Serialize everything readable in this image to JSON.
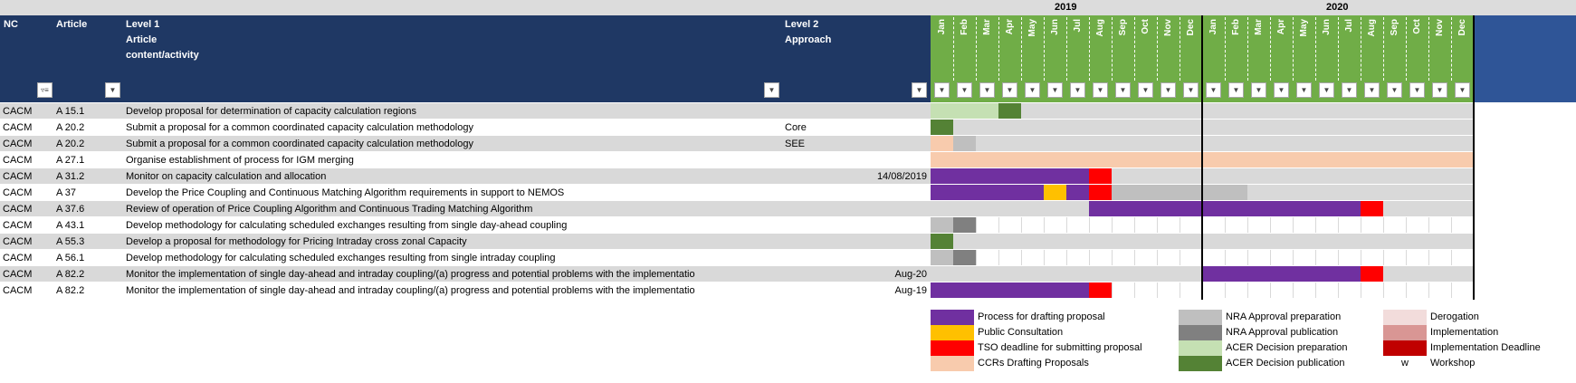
{
  "years": [
    "2019",
    "2020"
  ],
  "months": [
    "Jan",
    "Feb",
    "Mar",
    "Apr",
    "May",
    "Jun",
    "Jul",
    "Aug",
    "Sep",
    "Oct",
    "Nov",
    "Dec",
    "Jan",
    "Feb",
    "Mar",
    "Apr",
    "May",
    "Jun",
    "Jul",
    "Aug",
    "Sep",
    "Oct",
    "Nov",
    "Dec"
  ],
  "headers": {
    "nc": "NC",
    "article": "Article",
    "level1": "Level 1\nArticle\ncontent/activity",
    "level2": "Level 2\nApproach"
  },
  "colors": {
    "purple": "#7030a0",
    "orange": "#ffc000",
    "red": "#ff0000",
    "peach": "#f8cbad",
    "lightgray": "#bfbfbf",
    "darkgray": "#808080",
    "lightgreen": "#c5e0b3",
    "darkgreen": "#548235",
    "pinkpale": "#f2dcdb",
    "pink": "#d99694",
    "darkred": "#c00000",
    "rowgray": "#d9d9d9"
  },
  "rows": [
    {
      "nc": "CACM",
      "article": "A 15.1",
      "activity": "Develop proposal for determination of capacity calculation regions",
      "approach": "",
      "date": ""
    },
    {
      "nc": "CACM",
      "article": "A 20.2",
      "activity": "Submit a proposal for a common coordinated capacity calculation methodology",
      "approach": "Core",
      "date": ""
    },
    {
      "nc": "CACM",
      "article": "A 20.2",
      "activity": "Submit a proposal for a common coordinated capacity calculation methodology",
      "approach": "SEE",
      "date": ""
    },
    {
      "nc": "CACM",
      "article": "A 27.1",
      "activity": "Organise establishment of process for IGM merging",
      "approach": "",
      "date": ""
    },
    {
      "nc": "CACM",
      "article": "A 31.2",
      "activity": "Monitor on capacity calculation and allocation",
      "approach": "",
      "date": "14/08/2019"
    },
    {
      "nc": "CACM",
      "article": "A 37",
      "activity": "Develop the Price Coupling and  Continuous Matching Algorithm requirements in support to NEMOS",
      "approach": "",
      "date": ""
    },
    {
      "nc": "CACM",
      "article": "A 37.6",
      "activity": "Review of operation of Price Coupling Algorithm and Continuous Trading Matching Algorithm",
      "approach": "",
      "date": ""
    },
    {
      "nc": "CACM",
      "article": "A 43.1",
      "activity": "Develop methodology for calculating scheduled exchanges resulting from single day-ahead coupling",
      "approach": "",
      "date": ""
    },
    {
      "nc": "CACM",
      "article": "A 55.3",
      "activity": "Develop a proposal for methodology for Pricing Intraday cross zonal Capacity",
      "approach": "",
      "date": ""
    },
    {
      "nc": "CACM",
      "article": "A 56.1",
      "activity": "Develop methodology for calculating scheduled exchanges resulting from single intraday coupling",
      "approach": "",
      "date": ""
    },
    {
      "nc": "CACM",
      "article": "A 82.2",
      "activity": "Monitor the implementation of single day-ahead and intraday coupling/(a) progress and potential problems with the implementatio",
      "approach": "",
      "date": "Aug-20"
    },
    {
      "nc": "CACM",
      "article": "A 82.2",
      "activity": "Monitor the implementation of single day-ahead and intraday coupling/(a) progress and potential problems with the implementatio",
      "approach": "",
      "date": "Aug-19"
    }
  ],
  "gantt": [
    {
      "bg": "rowgray",
      "segments": [
        {
          "start": 0,
          "end": 3,
          "color": "lightgreen"
        },
        {
          "start": 3,
          "end": 4,
          "color": "darkgreen"
        }
      ]
    },
    {
      "bg": "rowgray",
      "segments": [
        {
          "start": 0,
          "end": 1,
          "color": "darkgreen"
        }
      ]
    },
    {
      "bg": "rowgray",
      "segments": [
        {
          "start": 0,
          "end": 1,
          "color": "peach"
        },
        {
          "start": 1,
          "end": 2,
          "color": "lightgray"
        }
      ]
    },
    {
      "bg": "peach",
      "segments": []
    },
    {
      "bg": "rowgray",
      "segments": [
        {
          "start": 0,
          "end": 7,
          "color": "purple"
        },
        {
          "start": 7,
          "end": 8,
          "color": "red"
        }
      ]
    },
    {
      "bg": "rowgray",
      "segments": [
        {
          "start": 0,
          "end": 5,
          "color": "purple"
        },
        {
          "start": 5,
          "end": 6,
          "color": "orange"
        },
        {
          "start": 6,
          "end": 7,
          "color": "purple"
        },
        {
          "start": 7,
          "end": 8,
          "color": "red"
        },
        {
          "start": 8,
          "end": 14,
          "color": "lightgray"
        }
      ]
    },
    {
      "bg": "rowgray",
      "segments": [
        {
          "start": 7,
          "end": 19,
          "color": "purple"
        },
        {
          "start": 19,
          "end": 20,
          "color": "red"
        }
      ]
    },
    {
      "bg": "white",
      "segments": [
        {
          "start": 0,
          "end": 1,
          "color": "lightgray"
        },
        {
          "start": 1,
          "end": 2,
          "color": "darkgray"
        }
      ]
    },
    {
      "bg": "rowgray",
      "segments": [
        {
          "start": 0,
          "end": 1,
          "color": "darkgreen"
        }
      ]
    },
    {
      "bg": "white",
      "segments": [
        {
          "start": 0,
          "end": 1,
          "color": "lightgray"
        },
        {
          "start": 1,
          "end": 2,
          "color": "darkgray"
        }
      ]
    },
    {
      "bg": "rowgray",
      "segments": [
        {
          "start": 12,
          "end": 19,
          "color": "purple"
        },
        {
          "start": 19,
          "end": 20,
          "color": "red"
        }
      ]
    },
    {
      "bg": "white",
      "segments": [
        {
          "start": 0,
          "end": 7,
          "color": "purple"
        },
        {
          "start": 7,
          "end": 8,
          "color": "red"
        }
      ]
    }
  ],
  "legend": [
    {
      "color": "purple",
      "label": "Process for drafting proposal"
    },
    {
      "color": "orange",
      "label": "Public Consultation"
    },
    {
      "color": "red",
      "label": "TSO deadline for submitting proposal"
    },
    {
      "color": "peach",
      "label": "CCRs Drafting Proposals"
    },
    {
      "color": "lightgray",
      "label": "NRA Approval preparation"
    },
    {
      "color": "darkgray",
      "label": "NRA Approval publication"
    },
    {
      "color": "lightgreen",
      "label": "ACER Decision preparation"
    },
    {
      "color": "darkgreen",
      "label": "ACER Decision publication"
    },
    {
      "color": "pinkpale",
      "label": "Derogation"
    },
    {
      "color": "pink",
      "label": "Implementation"
    },
    {
      "color": "darkred",
      "label": "Implementation Deadline"
    },
    {
      "color": "",
      "label": "Workshop",
      "symbol": "w"
    }
  ]
}
